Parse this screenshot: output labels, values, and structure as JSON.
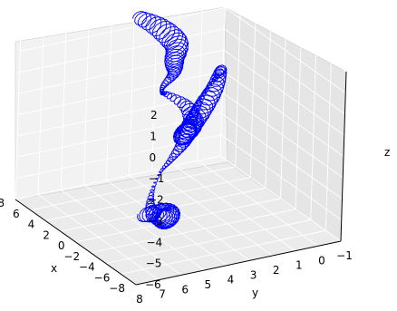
{
  "chart_data": {
    "type": "line",
    "projection": "3d",
    "title": "",
    "grid": true,
    "xlabel": "x",
    "ylabel": "y",
    "zlabel": "z",
    "xlim": [
      -8,
      8
    ],
    "ylim": [
      -1,
      8
    ],
    "zlim": [
      -6,
      2
    ],
    "x_ticks": [
      "−8",
      "−6",
      "−4",
      "−2",
      "0",
      "2",
      "4",
      "6",
      "8"
    ],
    "y_ticks": [
      "−1",
      "0",
      "1",
      "2",
      "3",
      "4",
      "5",
      "6",
      "7",
      "8"
    ],
    "z_ticks": [
      "−6",
      "−5",
      "−4",
      "−3",
      "−2",
      "−1",
      "0",
      "1",
      "2"
    ],
    "series": [
      {
        "color": "#0000ff",
        "points": [
          [
            6.8,
            3.2,
            1.8
          ],
          [
            5.2,
            2.8,
            1.6
          ],
          [
            3.6,
            2.6,
            1.2
          ],
          [
            2.6,
            3.0,
            0.8
          ],
          [
            1.4,
            3.4,
            0.6
          ],
          [
            0.4,
            4.2,
            0.4
          ],
          [
            -0.6,
            4.6,
            0.4
          ],
          [
            -1.8,
            4.8,
            0.7
          ],
          [
            -2.6,
            4.2,
            0.2
          ],
          [
            -3.0,
            4.0,
            -0.6
          ],
          [
            -2.6,
            4.2,
            -1.1
          ],
          [
            -1.6,
            3.8,
            -1.4
          ],
          [
            -0.4,
            3.2,
            -1.2
          ],
          [
            1.0,
            2.4,
            -1.0
          ],
          [
            2.4,
            1.6,
            -0.9
          ],
          [
            3.6,
            0.8,
            -0.8
          ],
          [
            4.8,
            0.2,
            -0.9
          ],
          [
            4.4,
            0.6,
            -1.6
          ],
          [
            3.0,
            1.6,
            -2.0
          ],
          [
            1.4,
            2.6,
            -2.2
          ],
          [
            0.0,
            3.4,
            -2.4
          ],
          [
            -1.4,
            4.4,
            -2.6
          ],
          [
            -2.4,
            5.2,
            -2.8
          ],
          [
            -3.2,
            5.8,
            -3.4
          ],
          [
            -3.8,
            6.0,
            -4.0
          ],
          [
            -3.6,
            5.4,
            -4.6
          ],
          [
            -2.6,
            4.8,
            -4.9
          ],
          [
            -1.2,
            4.6,
            -5.1
          ],
          [
            0.0,
            5.0,
            -5.4
          ]
        ]
      }
    ]
  }
}
